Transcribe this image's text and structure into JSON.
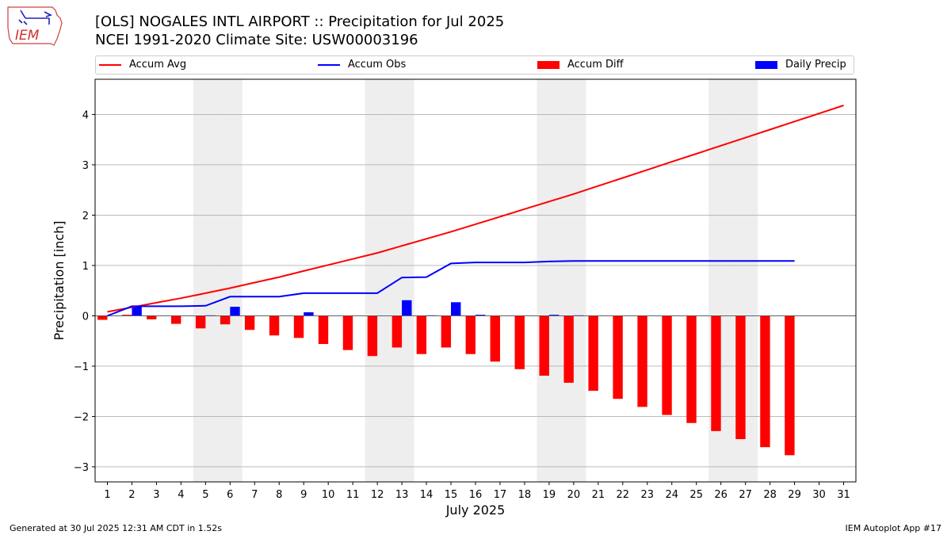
{
  "header": {
    "title_line1": "[OLS] NOGALES INTL AIRPORT :: Precipitation for Jul 2025",
    "title_line2": "NCEI 1991-2020 Climate Site: USW00003196"
  },
  "logo": {
    "text": "IEM"
  },
  "footer": {
    "left": "Generated at 30 Jul 2025 12:31 AM CDT in 1.52s",
    "right": "IEM Autoplot App #17"
  },
  "colors": {
    "avg": "#ff0000",
    "obs": "#0000ff",
    "diff": "#ff0000",
    "daily": "#0000ff",
    "weekend": "#eeeeee",
    "grid": "#b0b0b0"
  },
  "chart_data": {
    "type": "bar",
    "xlabel": "July 2025",
    "ylabel": "Precipitation [inch]",
    "xlim": [
      0.5,
      31.5
    ],
    "ylim": [
      -3.3,
      4.7
    ],
    "yticks": [
      -3,
      -2,
      -1,
      0,
      1,
      2,
      3,
      4
    ],
    "ytick_labels": [
      "−3",
      "−2",
      "−1",
      "0",
      "1",
      "2",
      "3",
      "4"
    ],
    "days": [
      1,
      2,
      3,
      4,
      5,
      6,
      7,
      8,
      9,
      10,
      11,
      12,
      13,
      14,
      15,
      16,
      17,
      18,
      19,
      20,
      21,
      22,
      23,
      24,
      25,
      26,
      27,
      28,
      29,
      30,
      31
    ],
    "weekend_days": [
      5,
      6,
      12,
      13,
      19,
      20,
      26,
      27
    ],
    "grid": true,
    "legend_position": "top",
    "series": [
      {
        "name": "Accum Avg",
        "kind": "line",
        "values": [
          0.08,
          0.17,
          0.26,
          0.35,
          0.45,
          0.55,
          0.66,
          0.77,
          0.89,
          1.01,
          1.13,
          1.25,
          1.39,
          1.53,
          1.67,
          1.82,
          1.97,
          2.12,
          2.27,
          2.42,
          2.58,
          2.74,
          2.9,
          3.06,
          3.22,
          3.38,
          3.54,
          3.7,
          3.86,
          4.02,
          4.18
        ]
      },
      {
        "name": "Accum Obs",
        "kind": "line",
        "values": [
          0.0,
          0.19,
          0.19,
          0.19,
          0.2,
          0.38,
          0.38,
          0.38,
          0.45,
          0.45,
          0.45,
          0.45,
          0.76,
          0.77,
          1.04,
          1.06,
          1.06,
          1.06,
          1.08,
          1.09,
          1.09,
          1.09,
          1.09,
          1.09,
          1.09,
          1.09,
          1.09,
          1.09,
          1.09,
          null,
          null
        ]
      },
      {
        "name": "Accum Diff",
        "kind": "bar",
        "values": [
          -0.08,
          0.02,
          -0.07,
          -0.16,
          -0.25,
          -0.17,
          -0.28,
          -0.39,
          -0.44,
          -0.56,
          -0.68,
          -0.8,
          -0.63,
          -0.76,
          -0.63,
          -0.76,
          -0.91,
          -1.06,
          -1.19,
          -1.33,
          -1.49,
          -1.65,
          -1.81,
          -1.97,
          -2.13,
          -2.29,
          -2.45,
          -2.61,
          -2.77,
          null,
          null
        ]
      },
      {
        "name": "Daily Precip",
        "kind": "bar",
        "values": [
          0.0,
          0.19,
          0.0,
          0.0,
          0.01,
          0.18,
          0.0,
          0.0,
          0.07,
          0.0,
          0.0,
          0.0,
          0.31,
          0.01,
          0.27,
          0.02,
          0.0,
          0.0,
          0.02,
          0.01,
          0.0,
          0.0,
          0.0,
          0.0,
          0.0,
          0.0,
          0.0,
          0.0,
          0.0,
          null,
          null
        ]
      }
    ]
  }
}
